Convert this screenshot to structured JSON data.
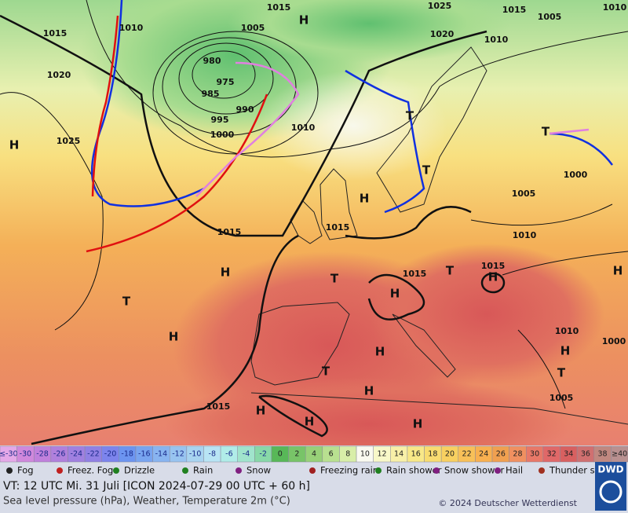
{
  "map": {
    "labels": [
      1015,
      "H",
      1025,
      1015,
      1005,
      1010,
      1015,
      1010,
      1005,
      1020,
      1010,
      980,
      975,
      985,
      990,
      995,
      1000,
      1010,
      1020,
      1025,
      "H",
      "H",
      1015,
      1015,
      "T",
      "T",
      "T",
      1000,
      1005,
      1010,
      "H",
      "T",
      "H",
      "T",
      1015,
      "T",
      "H",
      1015,
      "H",
      "H",
      "T",
      "H",
      1015,
      "H",
      "H",
      "H",
      "T",
      1005,
      1010,
      1000,
      "H",
      "H"
    ]
  },
  "scale": {
    "labels": [
      "≤-30",
      -30,
      -28,
      -26,
      -24,
      -22,
      -20,
      -18,
      -16,
      -14,
      -12,
      -10,
      -8,
      -6,
      -4,
      -2,
      0,
      2,
      4,
      6,
      8,
      10,
      12,
      14,
      16,
      18,
      20,
      22,
      24,
      26,
      28,
      30,
      32,
      34,
      36,
      38,
      "≥40"
    ],
    "colors": [
      "#e4a8e8",
      "#d088dc",
      "#c080dc",
      "#b080dc",
      "#a080e0",
      "#9080e4",
      "#7c84ec",
      "#6c94f0",
      "#78a4f0",
      "#88b4f0",
      "#98c4f0",
      "#a8d4f0",
      "#b8e4f4",
      "#b0ece8",
      "#a0e4cc",
      "#88d8a8",
      "#58b858",
      "#78c468",
      "#98d078",
      "#b8e090",
      "#d8eea8",
      "#fafaf0",
      "#f8f8c8",
      "#f8f0a8",
      "#f8e888",
      "#f8dc70",
      "#f8d060",
      "#f8c058",
      "#f8b050",
      "#f0a050",
      "#f09060",
      "#e87868",
      "#e06868",
      "#d86060",
      "#d07070",
      "#c08880",
      "#b89090"
    ]
  },
  "weather_legend": [
    "Fog",
    "Freez. Fog",
    "Drizzle",
    "Rain",
    "Snow",
    "Freezing rain",
    "Rain shower",
    "Snow shower",
    "Hail",
    "Thunder storm"
  ],
  "footer": {
    "valid_time": "VT: 12 UTC Mi.   31 Juli [ICON 2024-07-29  00 UTC + 60 h]",
    "subtitle": "Sea level pressure (hPa), Weather, Temperature 2m (°C)",
    "copyright": "© 2024 Deutscher Wetterdienst",
    "logo": "DWD"
  }
}
